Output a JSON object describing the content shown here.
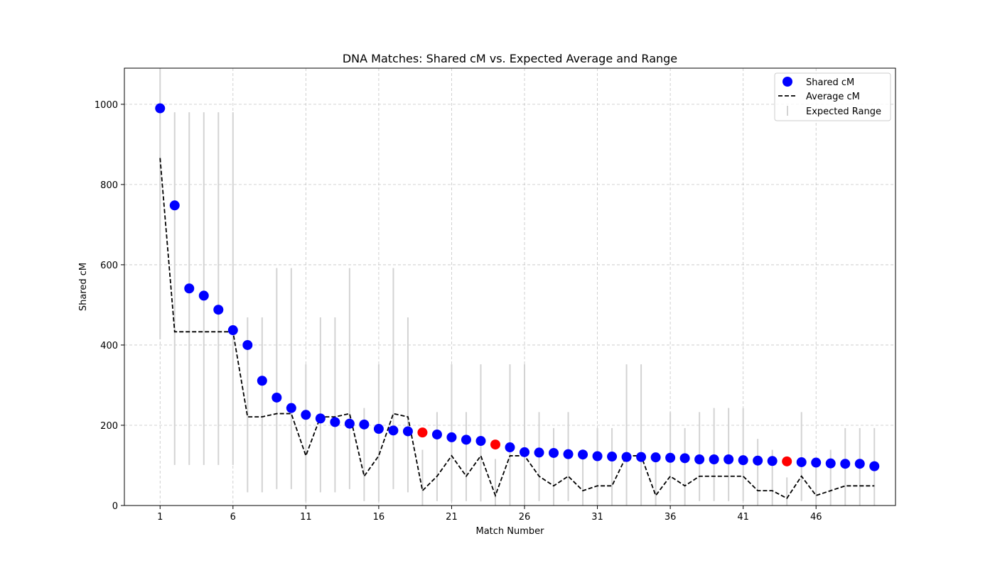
{
  "chart_data": {
    "type": "scatter",
    "title": "DNA Matches: Shared cM vs. Expected Average and Range",
    "xlabel": "Match Number",
    "ylabel": "Shared cM",
    "xlim": [
      -1.45,
      51.45
    ],
    "ylim": [
      0,
      1090
    ],
    "x_ticks": [
      1,
      6,
      11,
      16,
      21,
      26,
      31,
      36,
      41,
      46
    ],
    "y_ticks": [
      0,
      200,
      400,
      600,
      800,
      1000
    ],
    "grid": true,
    "legend_position": "top-right",
    "legend": [
      "Shared cM",
      "Average cM",
      "Expected Range"
    ],
    "colors": {
      "shared_cm": "#0000ff",
      "highlight": "#ff0000",
      "average_line": "#000000",
      "range_bars": "#d3d3d3",
      "grid": "#b0b0b0"
    },
    "x": [
      1,
      2,
      3,
      4,
      5,
      6,
      7,
      8,
      9,
      10,
      11,
      12,
      13,
      14,
      15,
      16,
      17,
      18,
      19,
      20,
      21,
      22,
      23,
      24,
      25,
      26,
      27,
      28,
      29,
      30,
      31,
      32,
      33,
      34,
      35,
      36,
      37,
      38,
      39,
      40,
      41,
      42,
      43,
      44,
      45,
      46,
      47,
      48,
      49,
      50
    ],
    "series": [
      {
        "name": "Shared cM",
        "values": [
          990,
          748,
          541,
          523,
          488,
          437,
          400,
          311,
          269,
          243,
          226,
          217,
          208,
          204,
          202,
          191,
          187,
          185,
          182,
          177,
          170,
          164,
          161,
          152,
          145,
          133,
          132,
          131,
          128,
          127,
          123,
          122,
          121,
          121,
          120,
          119,
          118,
          115,
          115,
          115,
          113,
          112,
          111,
          110,
          108,
          107,
          105,
          104,
          104,
          98
        ],
        "highlight_indices": [
          18,
          23,
          43
        ]
      },
      {
        "name": "Average cM",
        "values": [
          866,
          433,
          433,
          433,
          433,
          433,
          221,
          221,
          229,
          229,
          124,
          221,
          221,
          229,
          73,
          124,
          229,
          221,
          37,
          73,
          124,
          73,
          124,
          25,
          124,
          124,
          73,
          49,
          73,
          37,
          49,
          49,
          124,
          124,
          25,
          73,
          49,
          73,
          73,
          73,
          73,
          37,
          37,
          18,
          73,
          25,
          37,
          49,
          49,
          49
        ]
      },
      {
        "name": "Expected Range",
        "min": [
          414,
          101,
          101,
          101,
          101,
          101,
          33,
          33,
          41,
          41,
          10,
          33,
          33,
          41,
          11,
          10,
          41,
          33,
          0,
          11,
          10,
          11,
          10,
          0,
          0,
          0,
          11,
          0,
          11,
          0,
          0,
          0,
          0,
          0,
          0,
          11,
          0,
          11,
          11,
          11,
          11,
          0,
          0,
          0,
          11,
          0,
          0,
          0,
          0,
          0
        ],
        "max": [
          1098,
          980,
          980,
          980,
          980,
          980,
          469,
          469,
          592,
          592,
          352,
          469,
          469,
          592,
          243,
          352,
          592,
          469,
          139,
          233,
          352,
          233,
          352,
          116,
          352,
          352,
          233,
          193,
          233,
          140,
          193,
          193,
          352,
          352,
          116,
          233,
          193,
          233,
          243,
          243,
          243,
          166,
          139,
          70,
          233,
          116,
          139,
          193,
          193,
          193
        ]
      }
    ]
  }
}
